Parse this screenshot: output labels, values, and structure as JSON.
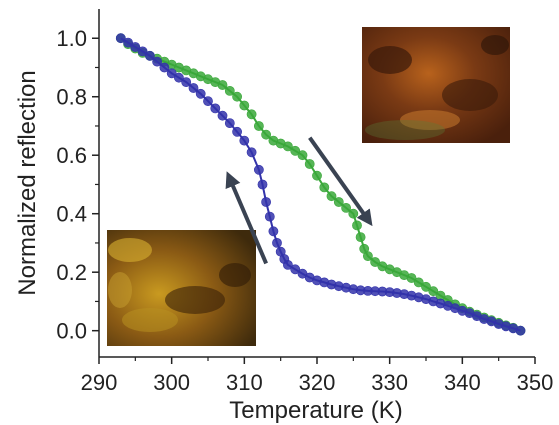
{
  "chart_data": {
    "type": "line",
    "xlabel": "Temperature (K)",
    "ylabel": "Normalized reflection",
    "xlim": [
      290,
      350
    ],
    "ylim": [
      -0.09,
      1.1
    ],
    "x_ticks": [
      "290",
      "300",
      "310",
      "320",
      "330",
      "340",
      "350"
    ],
    "y_ticks": [
      "0.0",
      "0.2",
      "0.4",
      "0.6",
      "0.8",
      "1.0"
    ],
    "grid": false,
    "legend": "none",
    "series": [
      {
        "color": "#3333aa",
        "direction": "heating",
        "x": [
          293,
          294,
          295,
          296,
          297,
          298,
          299,
          300,
          301,
          302,
          303,
          304,
          305,
          306,
          307,
          308,
          309,
          310,
          311,
          312,
          312.5,
          313,
          313.5,
          314,
          314.5,
          315,
          315.5,
          316,
          317,
          318,
          319,
          320,
          321,
          322,
          323,
          324,
          325,
          326,
          327,
          328,
          329,
          330,
          331,
          332,
          333,
          334,
          335,
          336,
          337,
          338,
          339,
          340,
          341,
          342,
          343,
          344,
          345,
          346,
          347,
          348
        ],
        "y": [
          1.0,
          0.985,
          0.97,
          0.955,
          0.94,
          0.92,
          0.9,
          0.88,
          0.865,
          0.85,
          0.83,
          0.81,
          0.785,
          0.76,
          0.735,
          0.71,
          0.68,
          0.65,
          0.61,
          0.55,
          0.5,
          0.44,
          0.39,
          0.34,
          0.3,
          0.27,
          0.245,
          0.225,
          0.21,
          0.195,
          0.182,
          0.172,
          0.165,
          0.158,
          0.152,
          0.147,
          0.142,
          0.138,
          0.136,
          0.135,
          0.134,
          0.132,
          0.129,
          0.125,
          0.12,
          0.114,
          0.108,
          0.1,
          0.093,
          0.085,
          0.077,
          0.068,
          0.06,
          0.05,
          0.04,
          0.032,
          0.023,
          0.015,
          0.008,
          0.0
        ]
      },
      {
        "color": "#3aa83a",
        "direction": "cooling",
        "x": [
          293,
          294,
          295,
          296,
          297,
          298,
          299,
          300,
          301,
          302,
          303,
          304,
          305,
          306,
          307,
          308,
          309,
          310,
          311,
          312,
          313,
          314,
          315,
          316,
          317,
          318,
          319,
          320,
          321,
          322,
          323,
          324,
          325,
          325.5,
          326,
          326.5,
          327,
          328,
          329,
          330,
          331,
          332,
          333,
          334,
          335,
          336,
          337,
          338,
          339,
          340,
          341,
          342,
          343,
          344,
          345,
          346,
          347,
          348
        ],
        "y": [
          1.0,
          0.98,
          0.965,
          0.95,
          0.94,
          0.93,
          0.92,
          0.91,
          0.9,
          0.89,
          0.88,
          0.87,
          0.86,
          0.85,
          0.84,
          0.82,
          0.8,
          0.77,
          0.74,
          0.7,
          0.67,
          0.65,
          0.64,
          0.63,
          0.615,
          0.6,
          0.57,
          0.53,
          0.49,
          0.46,
          0.44,
          0.42,
          0.4,
          0.36,
          0.32,
          0.28,
          0.255,
          0.235,
          0.22,
          0.21,
          0.2,
          0.19,
          0.18,
          0.165,
          0.15,
          0.135,
          0.12,
          0.105,
          0.09,
          0.077,
          0.065,
          0.055,
          0.045,
          0.036,
          0.027,
          0.018,
          0.01,
          0.0
        ]
      }
    ],
    "annotations": [
      {
        "type": "arrow",
        "label": "arrow-up-left",
        "from": [
          313,
          0.23
        ],
        "to": [
          308,
          0.52
        ]
      },
      {
        "type": "arrow",
        "label": "arrow-down-right",
        "from": [
          319,
          0.66
        ],
        "to": [
          327,
          0.38
        ]
      }
    ]
  },
  "insets": [
    {
      "name": "micrograph-inset-top-right",
      "image": "orange-brown crystal micrograph"
    },
    {
      "name": "micrograph-inset-bottom-left",
      "image": "yellow-brown crystal micrograph"
    }
  ],
  "colors": {
    "axis": "#222222",
    "arrow": "#3a4352"
  }
}
